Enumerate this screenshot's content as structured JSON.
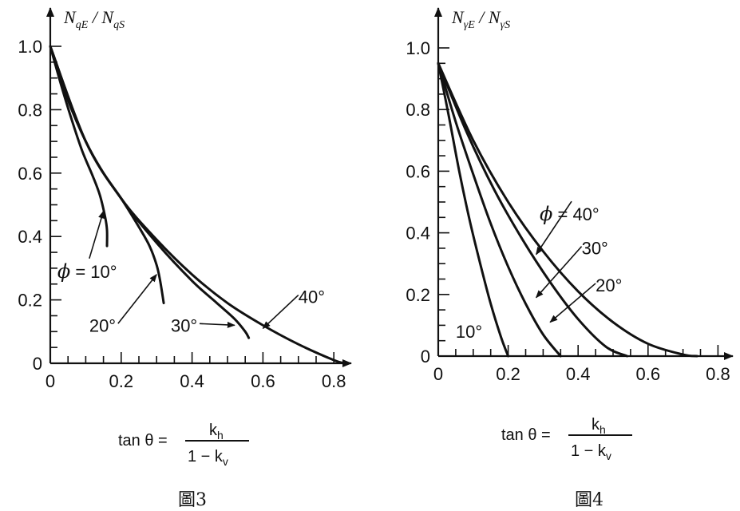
{
  "chart_data": [
    {
      "type": "line",
      "ylabel": {
        "main": "N",
        "sub1": "qE",
        "sep": " / ",
        "main2": "N",
        "sub2": "qS"
      },
      "xlabel": {
        "text": "tan θ =",
        "num": "k",
        "num_sub": "h",
        "den": "1 − k",
        "den_sub": "v"
      },
      "caption": "圖3",
      "xlim": [
        0,
        0.8
      ],
      "ylim": [
        0,
        1.0
      ],
      "x_ticks": [
        "0",
        "0.2",
        "0.4",
        "0.6",
        "0.8"
      ],
      "y_ticks": [
        "0",
        "0.2",
        "0.4",
        "0.6",
        "0.8",
        "1.0"
      ],
      "series": [
        {
          "x": [
            0,
            0.03,
            0.06,
            0.09,
            0.12,
            0.14,
            0.155,
            0.16,
            0.16
          ],
          "y": [
            1.0,
            0.88,
            0.77,
            0.67,
            0.59,
            0.53,
            0.46,
            0.42,
            0.37
          ]
        },
        {
          "x": [
            0,
            0.05,
            0.1,
            0.15,
            0.2,
            0.25,
            0.28,
            0.3,
            0.31,
            0.32
          ],
          "y": [
            1.0,
            0.83,
            0.7,
            0.6,
            0.52,
            0.43,
            0.37,
            0.31,
            0.26,
            0.19
          ]
        },
        {
          "x": [
            0,
            0.1,
            0.2,
            0.3,
            0.4,
            0.47,
            0.52,
            0.55,
            0.56
          ],
          "y": [
            1.0,
            0.7,
            0.52,
            0.38,
            0.26,
            0.19,
            0.14,
            0.1,
            0.08
          ]
        },
        {
          "x": [
            0,
            0.1,
            0.2,
            0.3,
            0.4,
            0.5,
            0.6,
            0.7,
            0.8,
            0.83
          ],
          "y": [
            1.0,
            0.7,
            0.52,
            0.39,
            0.28,
            0.19,
            0.12,
            0.06,
            0.01,
            0.0
          ]
        }
      ],
      "annotations": [
        {
          "text": "ϕ = 10°",
          "x": 0.02,
          "y": 0.27,
          "ax": 0.15,
          "ay": 0.48
        },
        {
          "text": "20°",
          "x": 0.11,
          "y": 0.1,
          "ax": 0.3,
          "ay": 0.28
        },
        {
          "text": "30°",
          "x": 0.34,
          "y": 0.1,
          "ax": 0.52,
          "ay": 0.12
        },
        {
          "text": "40°",
          "x": 0.7,
          "y": 0.19,
          "ax": 0.6,
          "ay": 0.11
        }
      ]
    },
    {
      "type": "line",
      "ylabel": {
        "main": "N",
        "sub1": "γE",
        "sep": " / ",
        "main2": "N",
        "sub2": "γS"
      },
      "xlabel": {
        "text": "tan θ =",
        "num": "k",
        "num_sub": "h",
        "den": "1 − k",
        "den_sub": "v"
      },
      "caption": "圖4",
      "xlim": [
        0,
        0.8
      ],
      "ylim": [
        0,
        1.0
      ],
      "x_ticks": [
        "0",
        "0.2",
        "0.4",
        "0.6",
        "0.8"
      ],
      "y_ticks": [
        "0",
        "0.2",
        "0.4",
        "0.6",
        "0.8",
        "1.0"
      ],
      "series": [
        {
          "x": [
            0,
            0.03,
            0.06,
            0.09,
            0.12,
            0.15,
            0.18,
            0.2
          ],
          "y": [
            0.95,
            0.78,
            0.6,
            0.44,
            0.3,
            0.17,
            0.06,
            0.0
          ]
        },
        {
          "x": [
            0,
            0.05,
            0.1,
            0.15,
            0.2,
            0.25,
            0.3,
            0.35
          ],
          "y": [
            0.95,
            0.76,
            0.59,
            0.43,
            0.29,
            0.17,
            0.07,
            0.0
          ]
        },
        {
          "x": [
            0,
            0.08,
            0.16,
            0.24,
            0.32,
            0.4,
            0.48,
            0.54
          ],
          "y": [
            0.95,
            0.73,
            0.54,
            0.38,
            0.24,
            0.12,
            0.03,
            0.0
          ]
        },
        {
          "x": [
            0,
            0.1,
            0.2,
            0.3,
            0.4,
            0.5,
            0.6,
            0.7,
            0.74
          ],
          "y": [
            0.95,
            0.7,
            0.5,
            0.34,
            0.21,
            0.11,
            0.04,
            0.005,
            0.0
          ]
        }
      ],
      "annotations": [
        {
          "text": "ϕ = 40°",
          "x": 0.29,
          "y": 0.44,
          "ax": 0.28,
          "ay": 0.33
        },
        {
          "text": "30°",
          "x": 0.41,
          "y": 0.33,
          "ax": 0.28,
          "ay": 0.19
        },
        {
          "text": "20°",
          "x": 0.45,
          "y": 0.21,
          "ax": 0.32,
          "ay": 0.11
        },
        {
          "text": "10°",
          "x": 0.05,
          "y": 0.06,
          "ax": 0.0,
          "ay": 0.0
        }
      ]
    }
  ]
}
